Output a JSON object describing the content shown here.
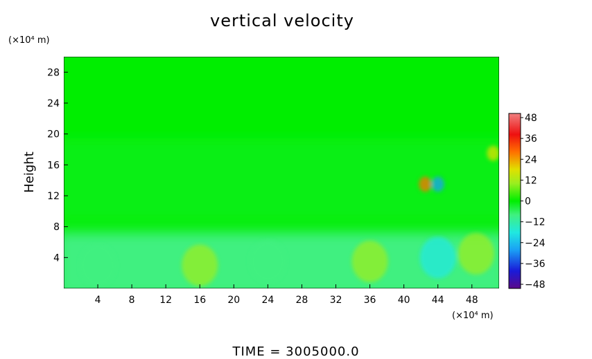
{
  "chart_data": {
    "type": "heatmap",
    "title": "vertical velocity",
    "xlabel": "",
    "ylabel": "Height",
    "x_unit_label": "(×10⁴ m)",
    "y_unit_label": "(×10⁴ m)",
    "x_ticks": [
      4,
      8,
      12,
      16,
      20,
      24,
      28,
      32,
      36,
      40,
      44,
      48
    ],
    "y_ticks": [
      4,
      8,
      12,
      16,
      20,
      24,
      28
    ],
    "xlim": [
      0,
      51.2
    ],
    "ylim": [
      0,
      30
    ],
    "colorbar": {
      "ticks": [
        48,
        36,
        24,
        12,
        0,
        -12,
        -24,
        -36,
        -48
      ],
      "tick_labels": [
        "48",
        "36",
        "24",
        "12",
        "0",
        "−12",
        "−24",
        "−36",
        "−48"
      ],
      "range": [
        -48,
        48
      ],
      "colors_low_to_high": [
        "#5a0a8a",
        "#1a1ad8",
        "#1aa0f5",
        "#20e8e0",
        "#40f080",
        "#00ee00",
        "#9aee20",
        "#e0e000",
        "#ff7000",
        "#ee1010",
        "#f08080"
      ]
    },
    "field_description_features": [
      {
        "x": 4,
        "y": 3,
        "value": -10
      },
      {
        "x": 16,
        "y": 3,
        "value": 8
      },
      {
        "x": 24,
        "y": 3.5,
        "value": -12
      },
      {
        "x": 36,
        "y": 3.5,
        "value": 8
      },
      {
        "x": 44,
        "y": 4,
        "value": -16
      },
      {
        "x": 48.5,
        "y": 4.5,
        "value": 10
      },
      {
        "x": 42.5,
        "y": 13.5,
        "value": 30
      },
      {
        "x": 44,
        "y": 13.5,
        "value": -26
      },
      {
        "x": 50.5,
        "y": 17.5,
        "value": 22
      }
    ],
    "background_value": 0
  },
  "footer": {
    "time_label": "TIME  =  3005000.0"
  }
}
